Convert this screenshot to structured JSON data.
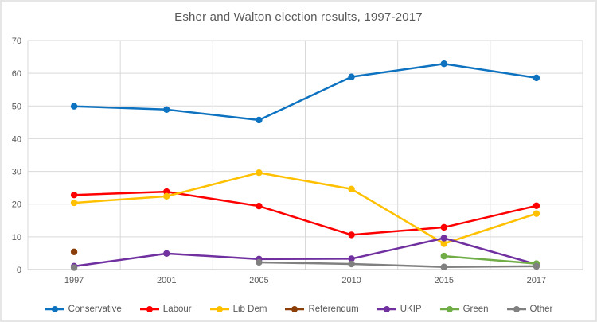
{
  "title": "Esher and Walton election results, 1997-2017",
  "colors": {
    "title_text": "#595959",
    "axis_text": "#595959",
    "gridline": "#d9d9d9",
    "axis_line": "#bfbfbf",
    "background": "#ffffff",
    "frame_border": "#e6e6e6"
  },
  "chart_data": {
    "type": "line",
    "categories": [
      "1997",
      "2001",
      "2005",
      "2010",
      "2015",
      "2017"
    ],
    "series": [
      {
        "name": "Conservative",
        "color": "#0d72c0",
        "values": [
          49.9,
          48.9,
          45.7,
          58.9,
          62.9,
          58.6
        ]
      },
      {
        "name": "Labour",
        "color": "#ff0000",
        "values": [
          22.8,
          23.8,
          19.4,
          10.6,
          12.9,
          19.5
        ]
      },
      {
        "name": "Lib Dem",
        "color": "#ffc000",
        "values": [
          20.4,
          22.4,
          29.6,
          24.6,
          7.9,
          17.1
        ]
      },
      {
        "name": "Referendum",
        "color": "#8b3e08",
        "values": [
          5.4,
          null,
          null,
          null,
          null,
          null
        ]
      },
      {
        "name": "UKIP",
        "color": "#7030a0",
        "values": [
          1.0,
          4.9,
          3.2,
          3.3,
          9.6,
          1.6
        ]
      },
      {
        "name": "Green",
        "color": "#70ad47",
        "values": [
          null,
          null,
          null,
          null,
          4.1,
          1.8
        ]
      },
      {
        "name": "Other",
        "color": "#808080",
        "values": [
          0.6,
          null,
          2.2,
          1.7,
          0.8,
          1.0
        ]
      }
    ],
    "title": "Esher and Walton election results, 1997-2017",
    "xlabel": "",
    "ylabel": "",
    "ylim": [
      0,
      70
    ],
    "yticks": [
      0,
      10,
      20,
      30,
      40,
      50,
      60,
      70
    ],
    "grid": true,
    "vertical_gridlines": true,
    "legend_position": "bottom"
  }
}
